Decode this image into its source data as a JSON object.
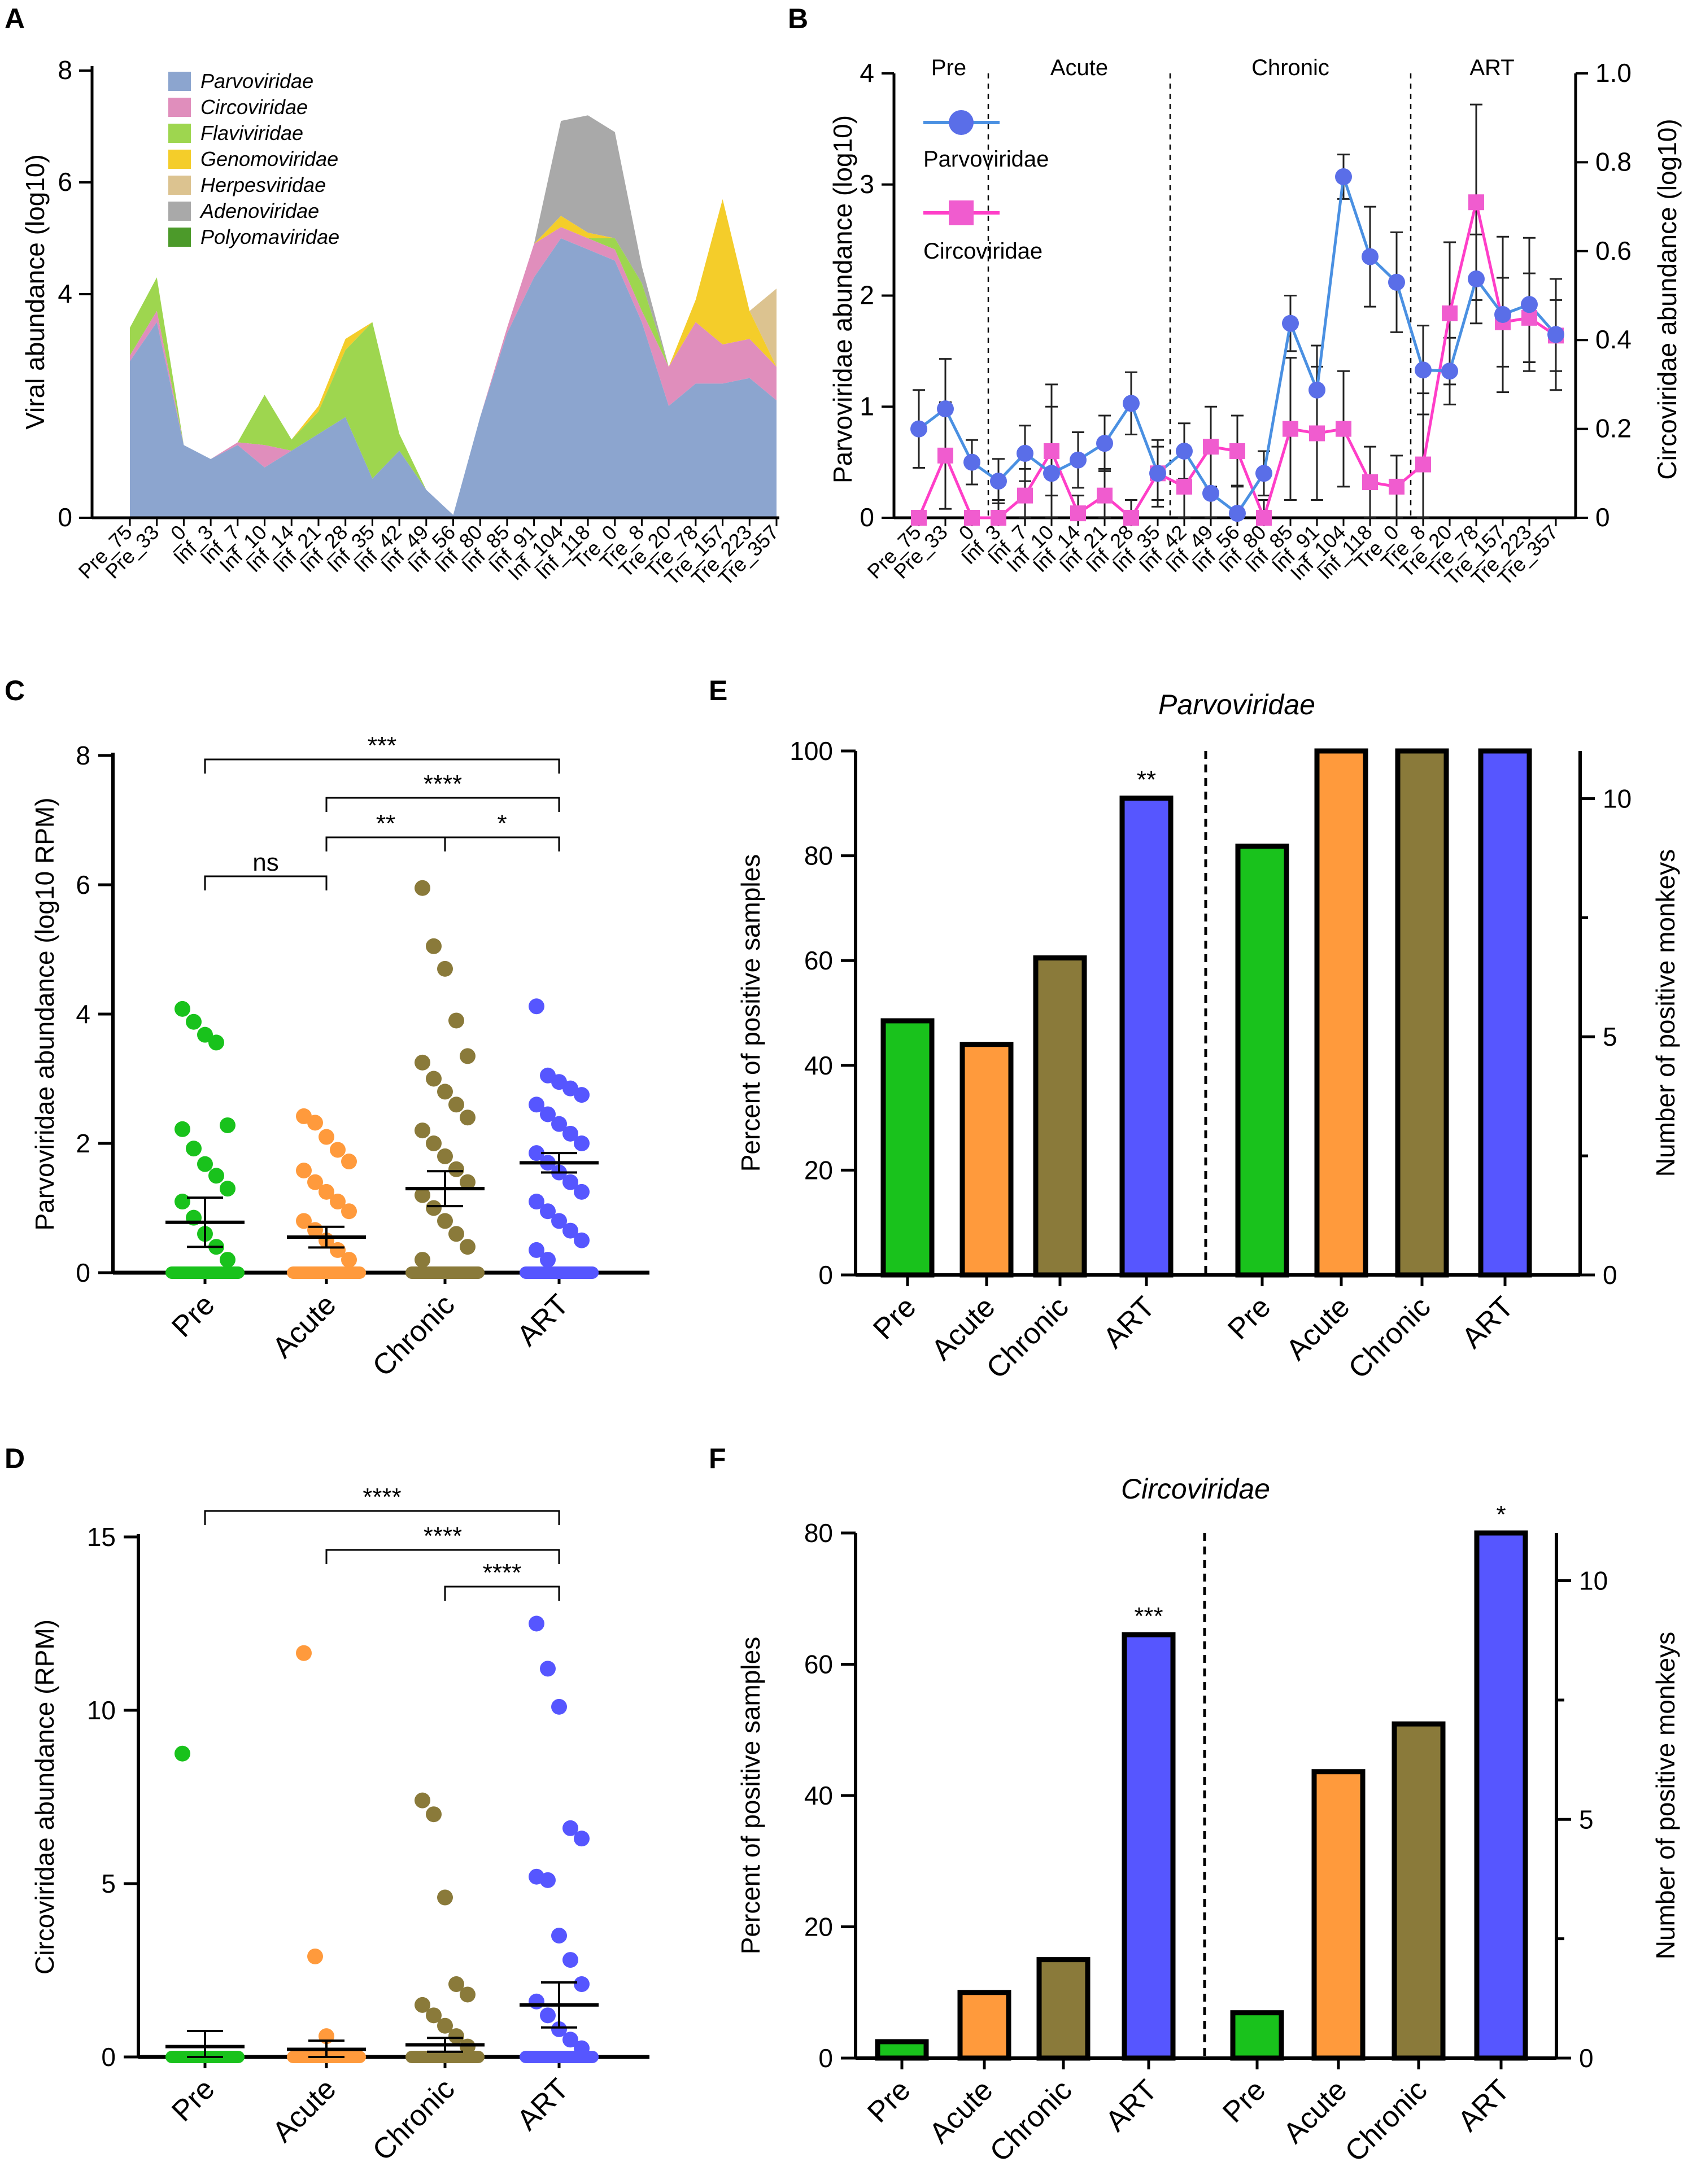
{
  "panel_labels": {
    "A": "A",
    "B": "B",
    "C": "C",
    "D": "D",
    "E": "E",
    "F": "F"
  },
  "colors": {
    "pre": "#19c21c",
    "acute": "#ff9a3c",
    "chronic": "#8a7a3a",
    "art": "#5656ff",
    "Parvoviridae": "#8ca5cf",
    "Circoviridae": "#e08ebc",
    "Flaviviridae": "#9ed64f",
    "Genomoviridae": "#f4cd2a",
    "Herpesviridae": "#dcc390",
    "Adenoviridae": "#a9a9a9",
    "Polyomaviridae": "#4c9a2a",
    "lineParvo": "#4a90e2",
    "lineCirco": "#ff3ec8"
  },
  "chart_data": [
    {
      "id": "A",
      "type": "area",
      "stacked": true,
      "ylabel": "Viral abundance (log10)",
      "yticks": [
        "0",
        "4",
        "6",
        "8"
      ],
      "x": [
        "Pre_75",
        "Pre_33",
        "Inf_0",
        "Inf_3",
        "Inf_7",
        "Inf_10",
        "Inf_14",
        "Inf_21",
        "Inf_28",
        "Inf_35",
        "Inf_42",
        "Inf_49",
        "Inf_56",
        "Inf_80",
        "Inf_85",
        "Inf_91",
        "Inf_104",
        "Inf_118",
        "Tre_0",
        "Tre_8",
        "Tre_20",
        "Tre_78",
        "Tre_157",
        "Tre_223",
        "Tre_357"
      ],
      "xtick_labels": [
        "Pre_75",
        "Pre_33",
        "_0",
        "Inf_3",
        "Inf_7",
        "Inf_10",
        "Inf_14",
        "Inf_21",
        "Inf_28",
        "Inf_35",
        "Inf_42",
        "Inf_49",
        "Inf_56",
        "Inf_80",
        "Inf_85",
        "Inf_91",
        "Inf_104",
        "Inf_118",
        "Tre_0",
        "Tre_8",
        "Tre_20",
        "Tre_78",
        "Tre_157",
        "Tre_223",
        "Tre_357"
      ],
      "series": [
        {
          "name": "Parvoviridae",
          "values": [
            2.8,
            3.5,
            1.3,
            1.05,
            1.3,
            0.9,
            1.2,
            1.5,
            1.8,
            0.7,
            1.2,
            0.5,
            0.05,
            1.8,
            3.3,
            4.3,
            5.0,
            4.8,
            4.6,
            3.5,
            2.0,
            2.4,
            2.4,
            2.5,
            2.1
          ]
        },
        {
          "name": "Circoviridae",
          "values": [
            0.1,
            0.2,
            0,
            0,
            0.05,
            0.4,
            0,
            0,
            0,
            0,
            0,
            0,
            0,
            0,
            0.1,
            0.6,
            0.2,
            0.2,
            0.2,
            0.2,
            0.7,
            1.1,
            0.7,
            0.7,
            0.6
          ]
        },
        {
          "name": "Flaviviridae",
          "values": [
            0.5,
            0.6,
            0,
            0,
            0,
            0.9,
            0.2,
            0.4,
            1.2,
            2.8,
            0.3,
            0,
            0,
            0,
            0,
            0,
            0,
            0,
            0.2,
            0.5,
            0,
            0,
            0,
            0,
            0
          ]
        },
        {
          "name": "Genomoviridae",
          "values": [
            0,
            0,
            0,
            0,
            0,
            0,
            0,
            0.1,
            0.2,
            0,
            0,
            0,
            0,
            0,
            0,
            0,
            0.2,
            0.1,
            0,
            0,
            0,
            0.4,
            2.6,
            0.5,
            0
          ]
        },
        {
          "name": "Herpesviridae",
          "values": [
            0,
            0,
            0,
            0,
            0,
            0,
            0,
            0,
            0,
            0,
            0,
            0,
            0,
            0,
            0,
            0,
            0,
            0,
            0,
            0,
            0,
            0,
            0,
            0,
            1.4
          ]
        },
        {
          "name": "Adenoviridae",
          "values": [
            0,
            0,
            0,
            0,
            0,
            0,
            0,
            0,
            0,
            0,
            0,
            0,
            0,
            0,
            0,
            0,
            1.7,
            2.1,
            1.9,
            0.3,
            0,
            0,
            0,
            0,
            0
          ]
        },
        {
          "name": "Polyomaviridae",
          "values": [
            0,
            0,
            0,
            0,
            0,
            0,
            0,
            0,
            0,
            0,
            0,
            0,
            0,
            0,
            0,
            0,
            0,
            0,
            0,
            0,
            0,
            0,
            0,
            0,
            0
          ]
        }
      ]
    },
    {
      "id": "B",
      "type": "line",
      "ylabel": "Parvoviridae abundance (log10)",
      "y2label": "Circoviridae abundance (log10)",
      "yticks": [
        "0",
        "1",
        "2",
        "3",
        "4"
      ],
      "y2ticks": [
        "0",
        "0.2",
        "0.4",
        "0.6",
        "0.8",
        "1.0"
      ],
      "phases": [
        "Pre",
        "Acute",
        "Chronic",
        "ART"
      ],
      "legend": [
        "Parvoviridae",
        "Circoviridae"
      ],
      "x": [
        "Pre_75",
        "Pre_33",
        "Inf_0",
        "Inf_3",
        "Inf_7",
        "Inf_10",
        "Inf_14",
        "Inf_21",
        "Inf_28",
        "Inf_35",
        "Inf_42",
        "Inf_49",
        "Inf_56",
        "Inf_80",
        "Inf_85",
        "Inf_91",
        "Inf_104",
        "Inf_118",
        "Tre_0",
        "Tre_8",
        "Tre_20",
        "Tre_78",
        "Tre_157",
        "Tre_223",
        "Tre_357"
      ],
      "xtick_labels": [
        "Pre_75",
        "Pre_33",
        "_0",
        "Inf_3",
        "Inf_7",
        "Inf_10",
        "Inf_14",
        "Inf_21",
        "Inf_28",
        "Inf_35",
        "Inf_42",
        "Inf_49",
        "Inf_56",
        "Inf_80",
        "Inf_85",
        "Inf_91",
        "Inf_104",
        "Inf_118",
        "Tre_0",
        "Tre_8",
        "Tre_20",
        "Tre_78",
        "Tre_157",
        "Tre_223",
        "Tre_357"
      ],
      "series": [
        {
          "name": "Parvoviridae",
          "axis": "left",
          "values": [
            0.8,
            0.98,
            0.5,
            0.33,
            0.58,
            0.4,
            0.52,
            0.67,
            1.03,
            0.4,
            0.6,
            0.22,
            0.04,
            0.4,
            1.75,
            1.15,
            3.07,
            2.35,
            2.12,
            1.33,
            1.32,
            2.15,
            1.83,
            1.92,
            1.65
          ],
          "err": [
            0.35,
            0.45,
            0.2,
            0.2,
            0.25,
            0.8,
            0.25,
            0.25,
            0.28,
            0.3,
            0.25,
            0.4,
            0.25,
            0.2,
            0.25,
            0.4,
            0.2,
            0.45,
            0.45,
            0.4,
            0.3,
            0.4,
            0.7,
            0.6,
            0.5
          ]
        },
        {
          "name": "Circoviridae",
          "axis": "right",
          "values": [
            0,
            0.14,
            0,
            0,
            0.05,
            0.15,
            0.01,
            0.05,
            0,
            0.1,
            0.07,
            0.16,
            0.15,
            0,
            0.2,
            0.19,
            0.2,
            0.08,
            0.07,
            0.12,
            0.46,
            0.71,
            0.44,
            0.45,
            0.41
          ],
          "err": [
            0,
            0.12,
            0,
            0.04,
            0.06,
            0.1,
            0.04,
            0.06,
            0.04,
            0.06,
            0.08,
            0.09,
            0.08,
            0.04,
            0.16,
            0.15,
            0.13,
            0.08,
            0.07,
            0.16,
            0.16,
            0.22,
            0.1,
            0.1,
            0.08
          ]
        }
      ]
    },
    {
      "id": "C",
      "type": "scatter",
      "ylabel": "Parvoviridae abundance (log10 RPM)",
      "yticks": [
        "0",
        "2",
        "4",
        "6",
        "8"
      ],
      "categories": [
        "Pre",
        "Acute",
        "Chronic",
        "ART"
      ],
      "means": [
        0.78,
        0.55,
        1.3,
        1.7
      ],
      "sems": [
        0.38,
        0.16,
        0.27,
        0.15
      ],
      "points": [
        [
          4.08,
          3.88,
          3.68,
          3.56,
          2.28,
          2.22,
          1.92,
          1.68,
          1.5,
          1.3,
          1.1,
          0.85,
          0.6,
          0.4,
          0.2
        ],
        [
          2.42,
          2.32,
          2.1,
          1.9,
          1.72,
          1.58,
          1.4,
          1.25,
          1.1,
          0.95,
          0.8,
          0.66,
          0.5,
          0.35,
          0.2
        ],
        [
          5.95,
          5.05,
          4.7,
          3.9,
          3.35,
          3.25,
          3.0,
          2.8,
          2.6,
          2.4,
          2.2,
          2.0,
          1.8,
          1.6,
          1.4,
          1.2,
          1.0,
          0.8,
          0.6,
          0.4,
          0.2
        ],
        [
          4.12,
          3.05,
          2.95,
          2.85,
          2.75,
          2.6,
          2.45,
          2.3,
          2.15,
          2.0,
          1.85,
          1.7,
          1.55,
          1.4,
          1.25,
          1.1,
          0.95,
          0.8,
          0.65,
          0.5,
          0.35,
          0.2
        ]
      ],
      "comparisons": [
        {
          "from": "Pre",
          "to": "Acute",
          "label": "ns"
        },
        {
          "from": "Acute",
          "to": "Chronic",
          "label": "**"
        },
        {
          "from": "Chronic",
          "to": "ART",
          "label": "*"
        },
        {
          "from": "Acute",
          "to": "ART",
          "label": "****"
        },
        {
          "from": "Pre",
          "to": "ART",
          "label": "***"
        }
      ]
    },
    {
      "id": "D",
      "type": "scatter",
      "ylabel": "Circoviridae abundance (RPM)",
      "yticks": [
        "0",
        "5",
        "10",
        "15"
      ],
      "categories": [
        "Pre",
        "Acute",
        "Chronic",
        "ART"
      ],
      "means": [
        0.3,
        0.22,
        0.35,
        1.5
      ],
      "sems": [
        0.45,
        0.25,
        0.2,
        0.65
      ],
      "points": [
        [
          8.75
        ],
        [
          11.65,
          2.9,
          0.6
        ],
        [
          7.4,
          7.0,
          4.6,
          2.1,
          1.8,
          1.5,
          1.2,
          0.9,
          0.6,
          0.3
        ],
        [
          12.5,
          11.2,
          10.1,
          6.6,
          6.3,
          5.2,
          5.1,
          3.5,
          2.8,
          2.1,
          1.6,
          1.2,
          0.8,
          0.5,
          0.25
        ]
      ],
      "comparisons": [
        {
          "from": "Pre",
          "to": "ART",
          "label": "****"
        },
        {
          "from": "Acute",
          "to": "ART",
          "label": "****"
        },
        {
          "from": "Chronic",
          "to": "ART",
          "label": "****"
        }
      ]
    },
    {
      "id": "E",
      "type": "bar",
      "title": "Parvoviridae",
      "ylabel": "Percent of positive samples",
      "y2label": "Number of positive monkeys",
      "yticks": [
        "0",
        "20",
        "40",
        "60",
        "80",
        "100"
      ],
      "y2ticks": [
        "0",
        "5",
        "10"
      ],
      "categories": [
        "Pre",
        "Acute",
        "Chronic",
        "ART"
      ],
      "left_values": [
        48.5,
        44,
        60.5,
        91
      ],
      "right_values": [
        9,
        11,
        11,
        11
      ],
      "annotations": [
        {
          "group": "left",
          "index": 3,
          "label": "**"
        }
      ]
    },
    {
      "id": "F",
      "type": "bar",
      "title": "Circoviridae",
      "ylabel": "Percent of positive samples",
      "y2label": "Number of positive monkeys",
      "yticks": [
        "0",
        "20",
        "40",
        "60",
        "80"
      ],
      "y2ticks": [
        "0",
        "5",
        "10"
      ],
      "categories": [
        "Pre",
        "Acute",
        "Chronic",
        "ART"
      ],
      "left_values": [
        2.5,
        10,
        15,
        64.5
      ],
      "right_values": [
        0.95,
        6,
        7,
        11
      ],
      "annotations": [
        {
          "group": "left",
          "index": 3,
          "label": "***"
        },
        {
          "group": "right",
          "index": 3,
          "label": "*"
        }
      ]
    }
  ]
}
